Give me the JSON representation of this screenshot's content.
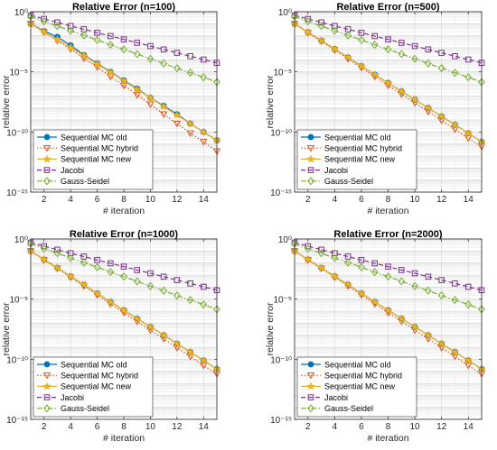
{
  "chart_data": [
    {
      "type": "line",
      "title": "Relative Error (n=100)",
      "xlabel": "# iteration",
      "ylabel": "relative error",
      "xlim": [
        1,
        15
      ],
      "ylim": [
        1e-15,
        1
      ],
      "yscale": "log",
      "grid": true,
      "legend": "bottom-left",
      "xticks": [
        2,
        4,
        6,
        8,
        10,
        12,
        14
      ],
      "yticks": [
        {
          "value": 1,
          "label": "10⁰"
        },
        {
          "value": 1e-05,
          "label": "10⁻⁵"
        },
        {
          "value": 1e-10,
          "label": "10⁻¹⁰"
        },
        {
          "value": 1e-15,
          "label": "10⁻¹⁵"
        }
      ],
      "x": [
        1,
        2,
        3,
        4,
        5,
        6,
        7,
        8,
        9,
        10,
        11,
        12,
        13,
        14,
        15
      ],
      "series": [
        {
          "name": "Sequential MC old",
          "color": "#0072BD",
          "marker": "circle",
          "dash": "solid",
          "values": [
            0.1,
            0.025,
            0.008,
            0.0016,
            0.00025,
            5e-05,
            1e-05,
            2e-06,
            4e-07,
            7e-08,
            1.5e-08,
            3e-09,
            5e-10,
            1e-10,
            2e-11
          ]
        },
        {
          "name": "Sequential MC hybrid",
          "color": "#D95319",
          "marker": "triangle-down",
          "dash": "dotted",
          "values": [
            0.1,
            0.02,
            0.004,
            0.0008,
            0.00013,
            2.5e-05,
            4e-06,
            7e-07,
            1.2e-07,
            2e-08,
            3e-09,
            5e-10,
            8e-11,
            1.5e-11,
            2.5e-12
          ]
        },
        {
          "name": "Sequential MC new",
          "color": "#EDB120",
          "marker": "star",
          "dash": "solid",
          "values": [
            0.1,
            0.022,
            0.005,
            0.0011,
            0.00022,
            4.5e-05,
            9e-06,
            1.8e-06,
            3.5e-07,
            7e-08,
            1.3e-08,
            2.5e-09,
            5e-10,
            1e-10,
            2e-11
          ]
        },
        {
          "name": "Jacobi",
          "color": "#7E2F8E",
          "marker": "square",
          "dash": "dashed",
          "values": [
            0.5,
            0.25,
            0.13,
            0.065,
            0.035,
            0.018,
            0.0095,
            0.005,
            0.0026,
            0.0014,
            0.00073,
            0.00038,
            0.0002,
            0.000105,
            5.5e-05
          ]
        },
        {
          "name": "Gauss-Seidel",
          "color": "#77AC30",
          "marker": "diamond",
          "dash": "dashdot",
          "values": [
            0.4,
            0.16,
            0.065,
            0.026,
            0.011,
            0.0045,
            0.0018,
            0.00075,
            0.0003,
            0.00012,
            5e-05,
            2e-05,
            8.5e-06,
            3.5e-06,
            1.4e-06
          ]
        }
      ]
    },
    {
      "type": "line",
      "title": "Relative Error (n=500)",
      "xlabel": "# iteration",
      "ylabel": "relative error",
      "xlim": [
        1,
        15
      ],
      "ylim": [
        1e-15,
        1
      ],
      "yscale": "log",
      "grid": true,
      "legend": "bottom-left",
      "xticks": [
        2,
        4,
        6,
        8,
        10,
        12,
        14
      ],
      "yticks": [
        {
          "value": 1,
          "label": "10⁰"
        },
        {
          "value": 1e-05,
          "label": "10⁻⁵"
        },
        {
          "value": 1e-10,
          "label": "10⁻¹⁰"
        },
        {
          "value": 1e-15,
          "label": "10⁻¹⁵"
        }
      ],
      "x": [
        1,
        2,
        3,
        4,
        5,
        6,
        7,
        8,
        9,
        10,
        11,
        12,
        13,
        14,
        15
      ],
      "series": [
        {
          "name": "Sequential MC old",
          "color": "#0072BD",
          "marker": "circle",
          "dash": "solid",
          "values": [
            0.1,
            0.02,
            0.004,
            0.0008,
            0.00016,
            3e-05,
            6e-06,
            1.2e-06,
            2.4e-07,
            5e-08,
            1e-08,
            2e-09,
            4e-10,
            8e-11,
            1.5e-11
          ]
        },
        {
          "name": "Sequential MC hybrid",
          "color": "#D95319",
          "marker": "triangle-down",
          "dash": "dotted",
          "values": [
            0.1,
            0.018,
            0.0035,
            0.00065,
            0.00012,
            2.2e-05,
            4e-06,
            7.5e-07,
            1.4e-07,
            2.6e-08,
            5e-09,
            9e-10,
            1.7e-10,
            3e-11,
            6e-12
          ]
        },
        {
          "name": "Sequential MC new",
          "color": "#EDB120",
          "marker": "star",
          "dash": "solid",
          "values": [
            0.1,
            0.02,
            0.004,
            0.0008,
            0.00016,
            3e-05,
            6e-06,
            1.2e-06,
            2.4e-07,
            5e-08,
            1e-08,
            2e-09,
            4e-10,
            8e-11,
            1.5e-11
          ]
        },
        {
          "name": "Jacobi",
          "color": "#7E2F8E",
          "marker": "square",
          "dash": "dashed",
          "values": [
            0.5,
            0.25,
            0.13,
            0.065,
            0.035,
            0.018,
            0.0095,
            0.005,
            0.0026,
            0.0014,
            0.00073,
            0.00038,
            0.0002,
            0.000105,
            5.5e-05
          ]
        },
        {
          "name": "Gauss-Seidel",
          "color": "#77AC30",
          "marker": "diamond",
          "dash": "dashdot",
          "values": [
            0.4,
            0.16,
            0.065,
            0.026,
            0.011,
            0.0045,
            0.0018,
            0.00075,
            0.0003,
            0.00012,
            5e-05,
            2e-05,
            8.5e-06,
            3.5e-06,
            1.4e-06
          ]
        }
      ]
    },
    {
      "type": "line",
      "title": "Relative Error (n=1000)",
      "xlabel": "# iteration",
      "ylabel": "relative error",
      "xlim": [
        1,
        15
      ],
      "ylim": [
        1e-15,
        1
      ],
      "yscale": "log",
      "grid": true,
      "legend": "bottom-left",
      "xticks": [
        2,
        4,
        6,
        8,
        10,
        12,
        14
      ],
      "yticks": [
        {
          "value": 1,
          "label": "10⁰"
        },
        {
          "value": 1e-05,
          "label": "10⁻⁵"
        },
        {
          "value": 1e-10,
          "label": "10⁻¹⁰"
        },
        {
          "value": 1e-15,
          "label": "10⁻¹⁵"
        }
      ],
      "x": [
        1,
        2,
        3,
        4,
        5,
        6,
        7,
        8,
        9,
        10,
        11,
        12,
        13,
        14,
        15
      ],
      "series": [
        {
          "name": "Sequential MC old",
          "color": "#0072BD",
          "marker": "circle",
          "dash": "solid",
          "values": [
            0.1,
            0.02,
            0.004,
            0.0008,
            0.00016,
            3e-05,
            6e-06,
            1.2e-06,
            2.4e-07,
            5e-08,
            1e-08,
            2e-09,
            4e-10,
            8e-11,
            1.5e-11
          ]
        },
        {
          "name": "Sequential MC hybrid",
          "color": "#D95319",
          "marker": "triangle-down",
          "dash": "dotted",
          "values": [
            0.1,
            0.018,
            0.0035,
            0.00065,
            0.00012,
            2.2e-05,
            4e-06,
            7.5e-07,
            1.4e-07,
            2.6e-08,
            5e-09,
            9e-10,
            1.7e-10,
            3e-11,
            6e-12
          ]
        },
        {
          "name": "Sequential MC new",
          "color": "#EDB120",
          "marker": "star",
          "dash": "solid",
          "values": [
            0.1,
            0.02,
            0.004,
            0.0008,
            0.00016,
            3e-05,
            6e-06,
            1.2e-06,
            2.4e-07,
            5e-08,
            1e-08,
            2e-09,
            4e-10,
            8e-11,
            1.5e-11
          ]
        },
        {
          "name": "Jacobi",
          "color": "#7E2F8E",
          "marker": "square",
          "dash": "dashed",
          "values": [
            0.5,
            0.25,
            0.13,
            0.065,
            0.035,
            0.018,
            0.0095,
            0.005,
            0.0026,
            0.0014,
            0.00073,
            0.00038,
            0.0002,
            0.000105,
            5.5e-05
          ]
        },
        {
          "name": "Gauss-Seidel",
          "color": "#77AC30",
          "marker": "diamond",
          "dash": "dashdot",
          "values": [
            0.4,
            0.16,
            0.065,
            0.026,
            0.011,
            0.0045,
            0.0018,
            0.00075,
            0.0003,
            0.00012,
            5e-05,
            2e-05,
            8.5e-06,
            3.5e-06,
            1.4e-06
          ]
        }
      ]
    },
    {
      "type": "line",
      "title": "Relative Error (n=2000)",
      "xlabel": "# iteration",
      "ylabel": "relative error",
      "xlim": [
        1,
        15
      ],
      "ylim": [
        1e-15,
        1
      ],
      "yscale": "log",
      "grid": true,
      "legend": "bottom-left",
      "xticks": [
        2,
        4,
        6,
        8,
        10,
        12,
        14
      ],
      "yticks": [
        {
          "value": 1,
          "label": "10⁰"
        },
        {
          "value": 1e-05,
          "label": "10⁻⁵"
        },
        {
          "value": 1e-10,
          "label": "10⁻¹⁰"
        },
        {
          "value": 1e-15,
          "label": "10⁻¹⁵"
        }
      ],
      "x": [
        1,
        2,
        3,
        4,
        5,
        6,
        7,
        8,
        9,
        10,
        11,
        12,
        13,
        14,
        15
      ],
      "series": [
        {
          "name": "Sequential MC old",
          "color": "#0072BD",
          "marker": "circle",
          "dash": "solid",
          "values": [
            0.1,
            0.02,
            0.004,
            0.0008,
            0.00016,
            3e-05,
            6e-06,
            1.2e-06,
            2.4e-07,
            5e-08,
            1e-08,
            2e-09,
            4e-10,
            8e-11,
            1.5e-11
          ]
        },
        {
          "name": "Sequential MC hybrid",
          "color": "#D95319",
          "marker": "triangle-down",
          "dash": "dotted",
          "values": [
            0.1,
            0.018,
            0.0035,
            0.00065,
            0.00012,
            2.2e-05,
            4e-06,
            7.5e-07,
            1.4e-07,
            2.6e-08,
            5e-09,
            9e-10,
            1.7e-10,
            3e-11,
            6e-12
          ]
        },
        {
          "name": "Sequential MC new",
          "color": "#EDB120",
          "marker": "star",
          "dash": "solid",
          "values": [
            0.1,
            0.02,
            0.004,
            0.0008,
            0.00016,
            3e-05,
            6e-06,
            1.2e-06,
            2.4e-07,
            5e-08,
            1e-08,
            2e-09,
            4e-10,
            8e-11,
            1.5e-11
          ]
        },
        {
          "name": "Jacobi",
          "color": "#7E2F8E",
          "marker": "square",
          "dash": "dashed",
          "values": [
            0.5,
            0.25,
            0.13,
            0.065,
            0.035,
            0.018,
            0.0095,
            0.005,
            0.0026,
            0.0014,
            0.00073,
            0.00038,
            0.0002,
            0.000105,
            5.5e-05
          ]
        },
        {
          "name": "Gauss-Seidel",
          "color": "#77AC30",
          "marker": "diamond",
          "dash": "dashdot",
          "values": [
            0.4,
            0.16,
            0.065,
            0.026,
            0.011,
            0.0045,
            0.0018,
            0.00075,
            0.0003,
            0.00012,
            5e-05,
            2e-05,
            8.5e-06,
            3.5e-06,
            1.4e-06
          ]
        }
      ]
    }
  ]
}
